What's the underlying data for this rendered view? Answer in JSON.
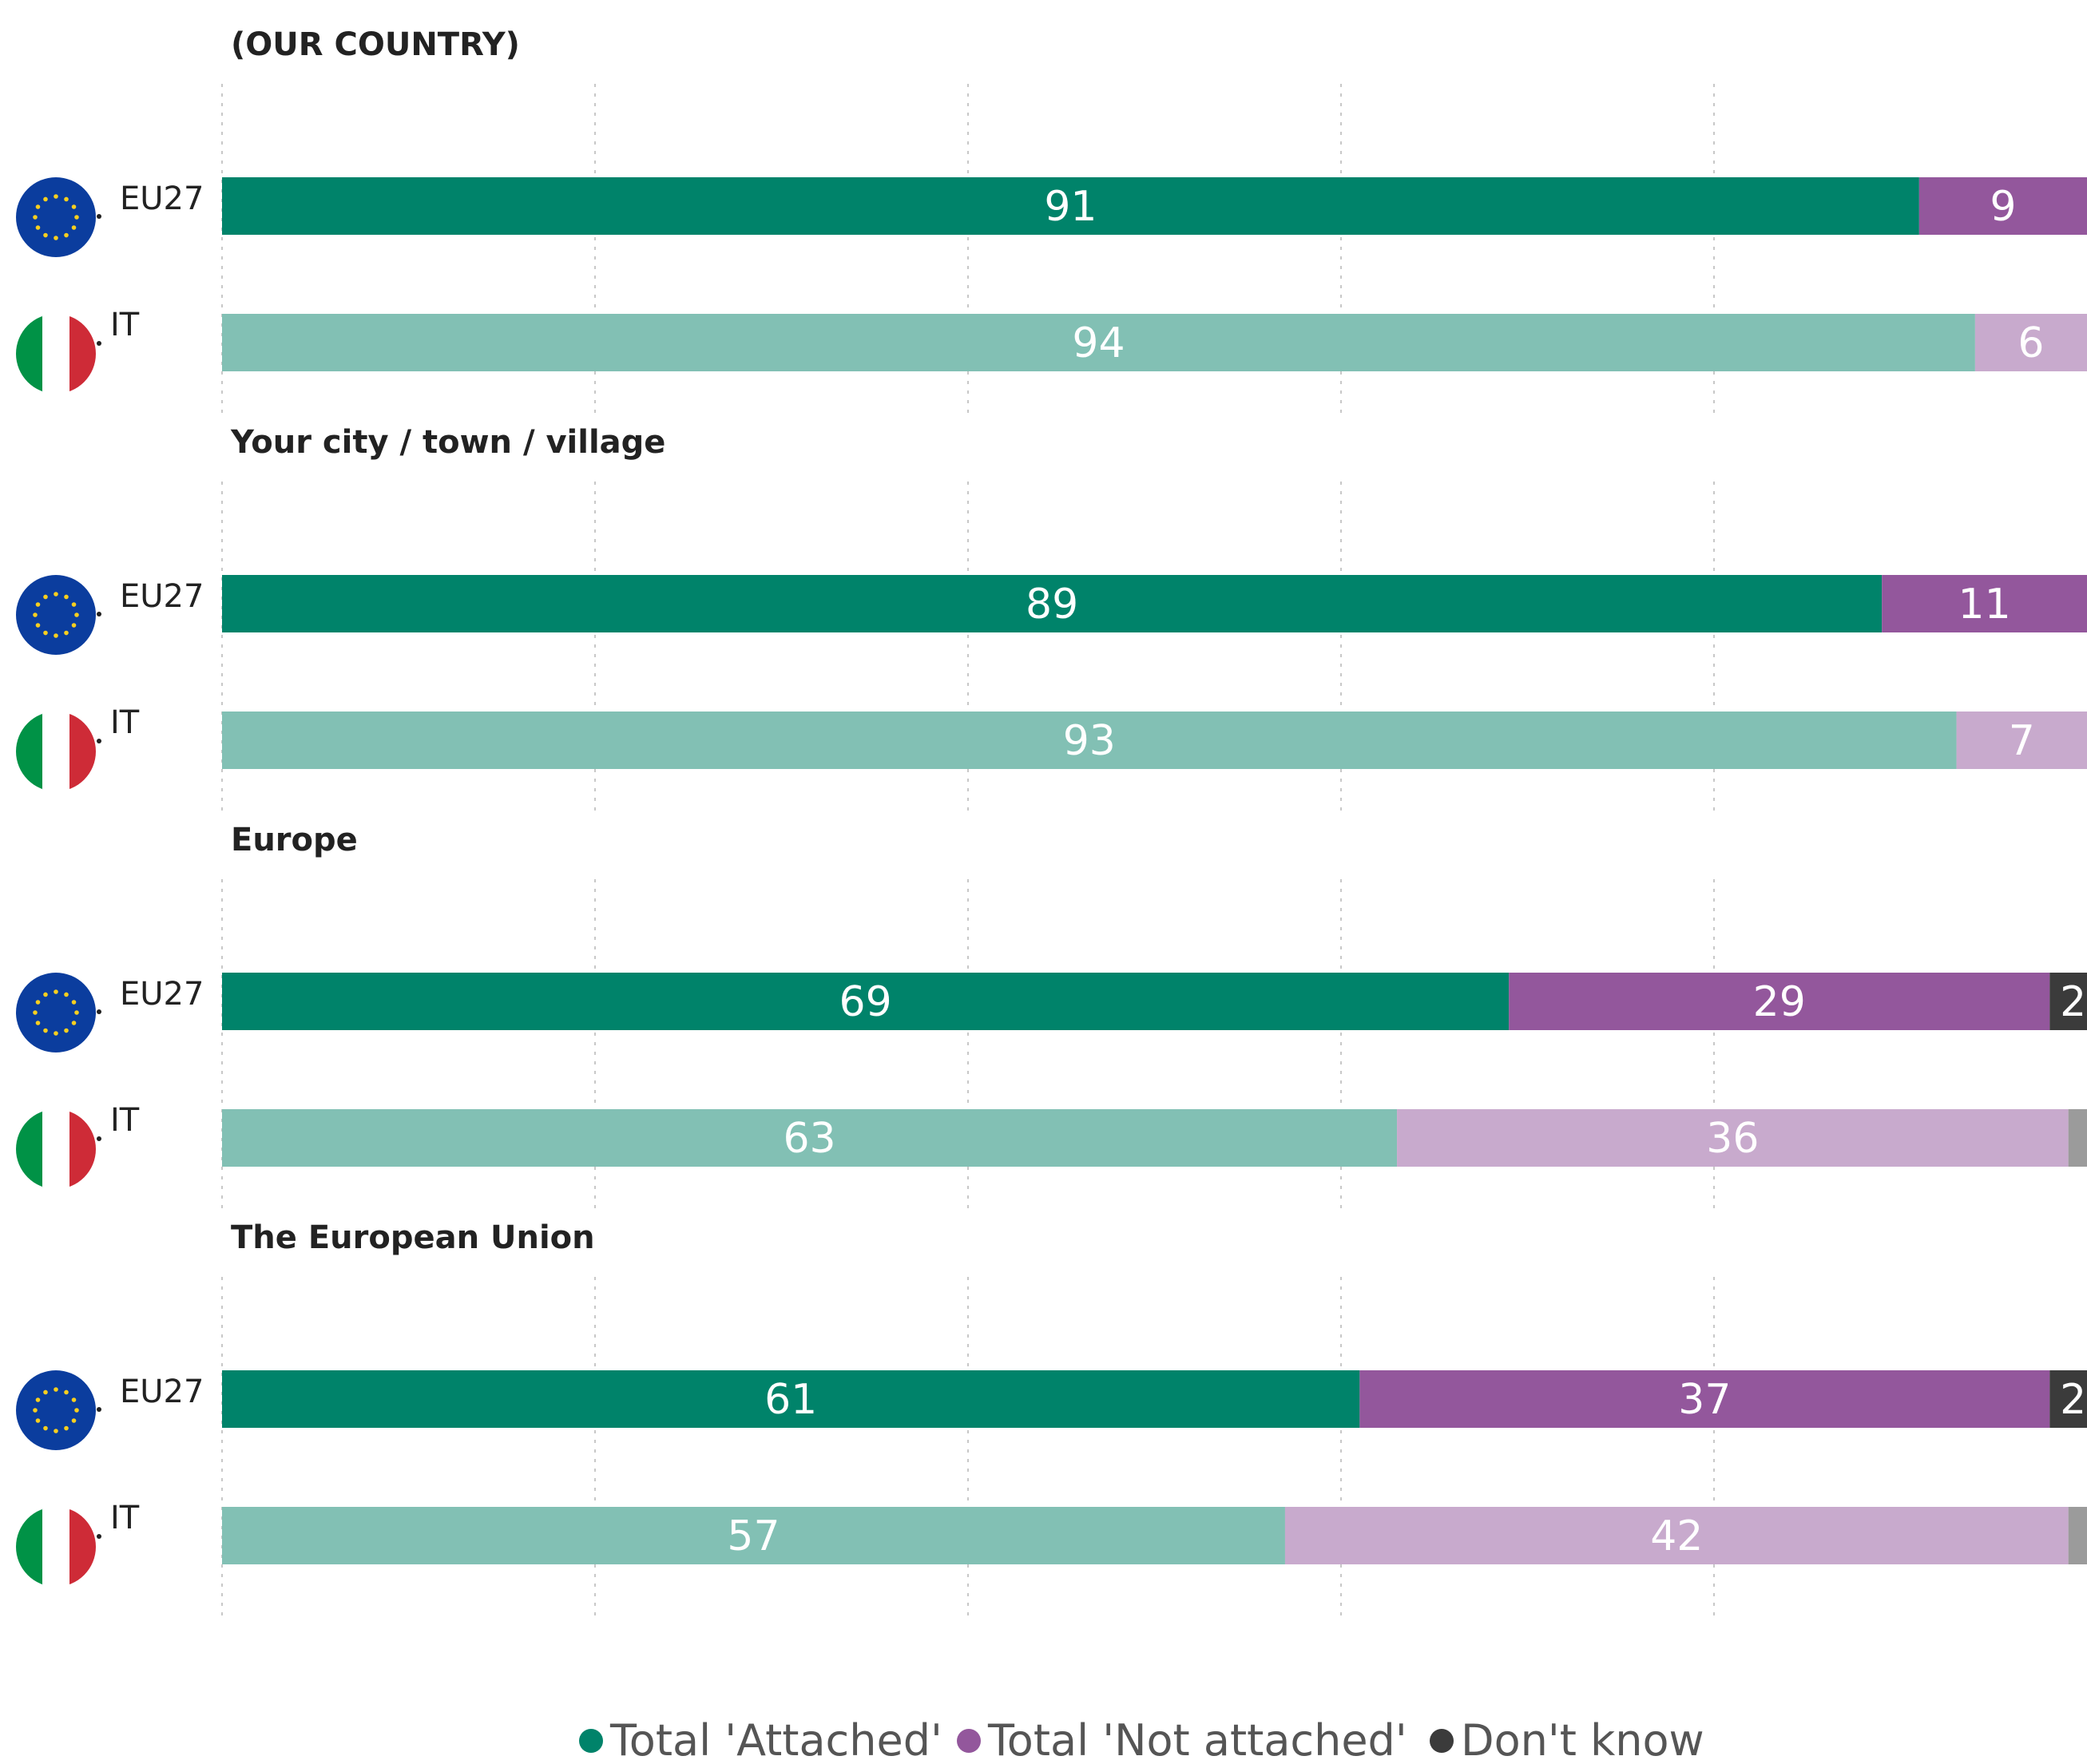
{
  "chart_data": {
    "type": "bar",
    "orientation": "horizontal",
    "stacked": true,
    "xlim": [
      0,
      100
    ],
    "grid": true,
    "legend_placement": "bottom",
    "legend": [
      {
        "key": "attached",
        "label": "Total 'Attached'",
        "color": "#00836A"
      },
      {
        "key": "not_attached",
        "label": "Total 'Not attached'",
        "color": "#93579C"
      },
      {
        "key": "dont_know",
        "label": "Don't know",
        "color": "#3B3B3B"
      }
    ],
    "groups": [
      {
        "title": "(OUR COUNTRY)",
        "rows": [
          {
            "label": "EU27",
            "flag": "eu-flag-icon",
            "attached": 91,
            "not_attached": 9,
            "dont_know": 0
          },
          {
            "label": "IT",
            "flag": "italy-flag-icon",
            "attached": 94,
            "not_attached": 6,
            "dont_know": 0
          }
        ]
      },
      {
        "title": "Your city / town / village",
        "rows": [
          {
            "label": "EU27",
            "flag": "eu-flag-icon",
            "attached": 89,
            "not_attached": 11,
            "dont_know": 0
          },
          {
            "label": "IT",
            "flag": "italy-flag-icon",
            "attached": 93,
            "not_attached": 7,
            "dont_know": 0
          }
        ]
      },
      {
        "title": "Europe",
        "rows": [
          {
            "label": "EU27",
            "flag": "eu-flag-icon",
            "attached": 69,
            "not_attached": 29,
            "dont_know": 2
          },
          {
            "label": "IT",
            "flag": "italy-flag-icon",
            "attached": 63,
            "not_attached": 36,
            "dont_know": 1
          }
        ]
      },
      {
        "title": "The European Union",
        "rows": [
          {
            "label": "EU27",
            "flag": "eu-flag-icon",
            "attached": 61,
            "not_attached": 37,
            "dont_know": 2
          },
          {
            "label": "IT",
            "flag": "italy-flag-icon",
            "attached": 57,
            "not_attached": 42,
            "dont_know": 1
          }
        ]
      }
    ],
    "colors": {
      "eu27": {
        "attached": "#00836A",
        "not_attached": "#93579C",
        "dont_know": "#3B3B3B"
      },
      "it": {
        "attached": "#82C0B4",
        "not_attached": "#C8AACD",
        "dont_know": "#9B9B9B"
      }
    }
  }
}
